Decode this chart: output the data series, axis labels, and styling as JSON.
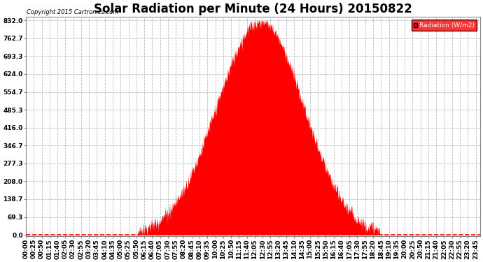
{
  "title": "Solar Radiation per Minute (24 Hours) 20150822",
  "copyright_text": "Copyright 2015 Cartronics.com",
  "legend_label": "Radiation (W/m2)",
  "yticks": [
    0.0,
    69.3,
    138.7,
    208.0,
    277.3,
    346.7,
    416.0,
    485.3,
    554.7,
    624.0,
    693.3,
    762.7,
    832.0
  ],
  "ymax": 832.0,
  "ymin": 0.0,
  "fill_color": "#FF0000",
  "dashed_line_color": "#FF0000",
  "grid_color": "#BBBBBB",
  "background_color": "#FFFFFF",
  "plot_background": "#FFFFFF",
  "title_fontsize": 12,
  "axis_fontsize": 6.5,
  "sunrise_minute": 355,
  "sunset_minute": 1120,
  "peak_minute": 745,
  "peak_value": 832.0,
  "total_minutes": 1440,
  "tick_interval": 25
}
